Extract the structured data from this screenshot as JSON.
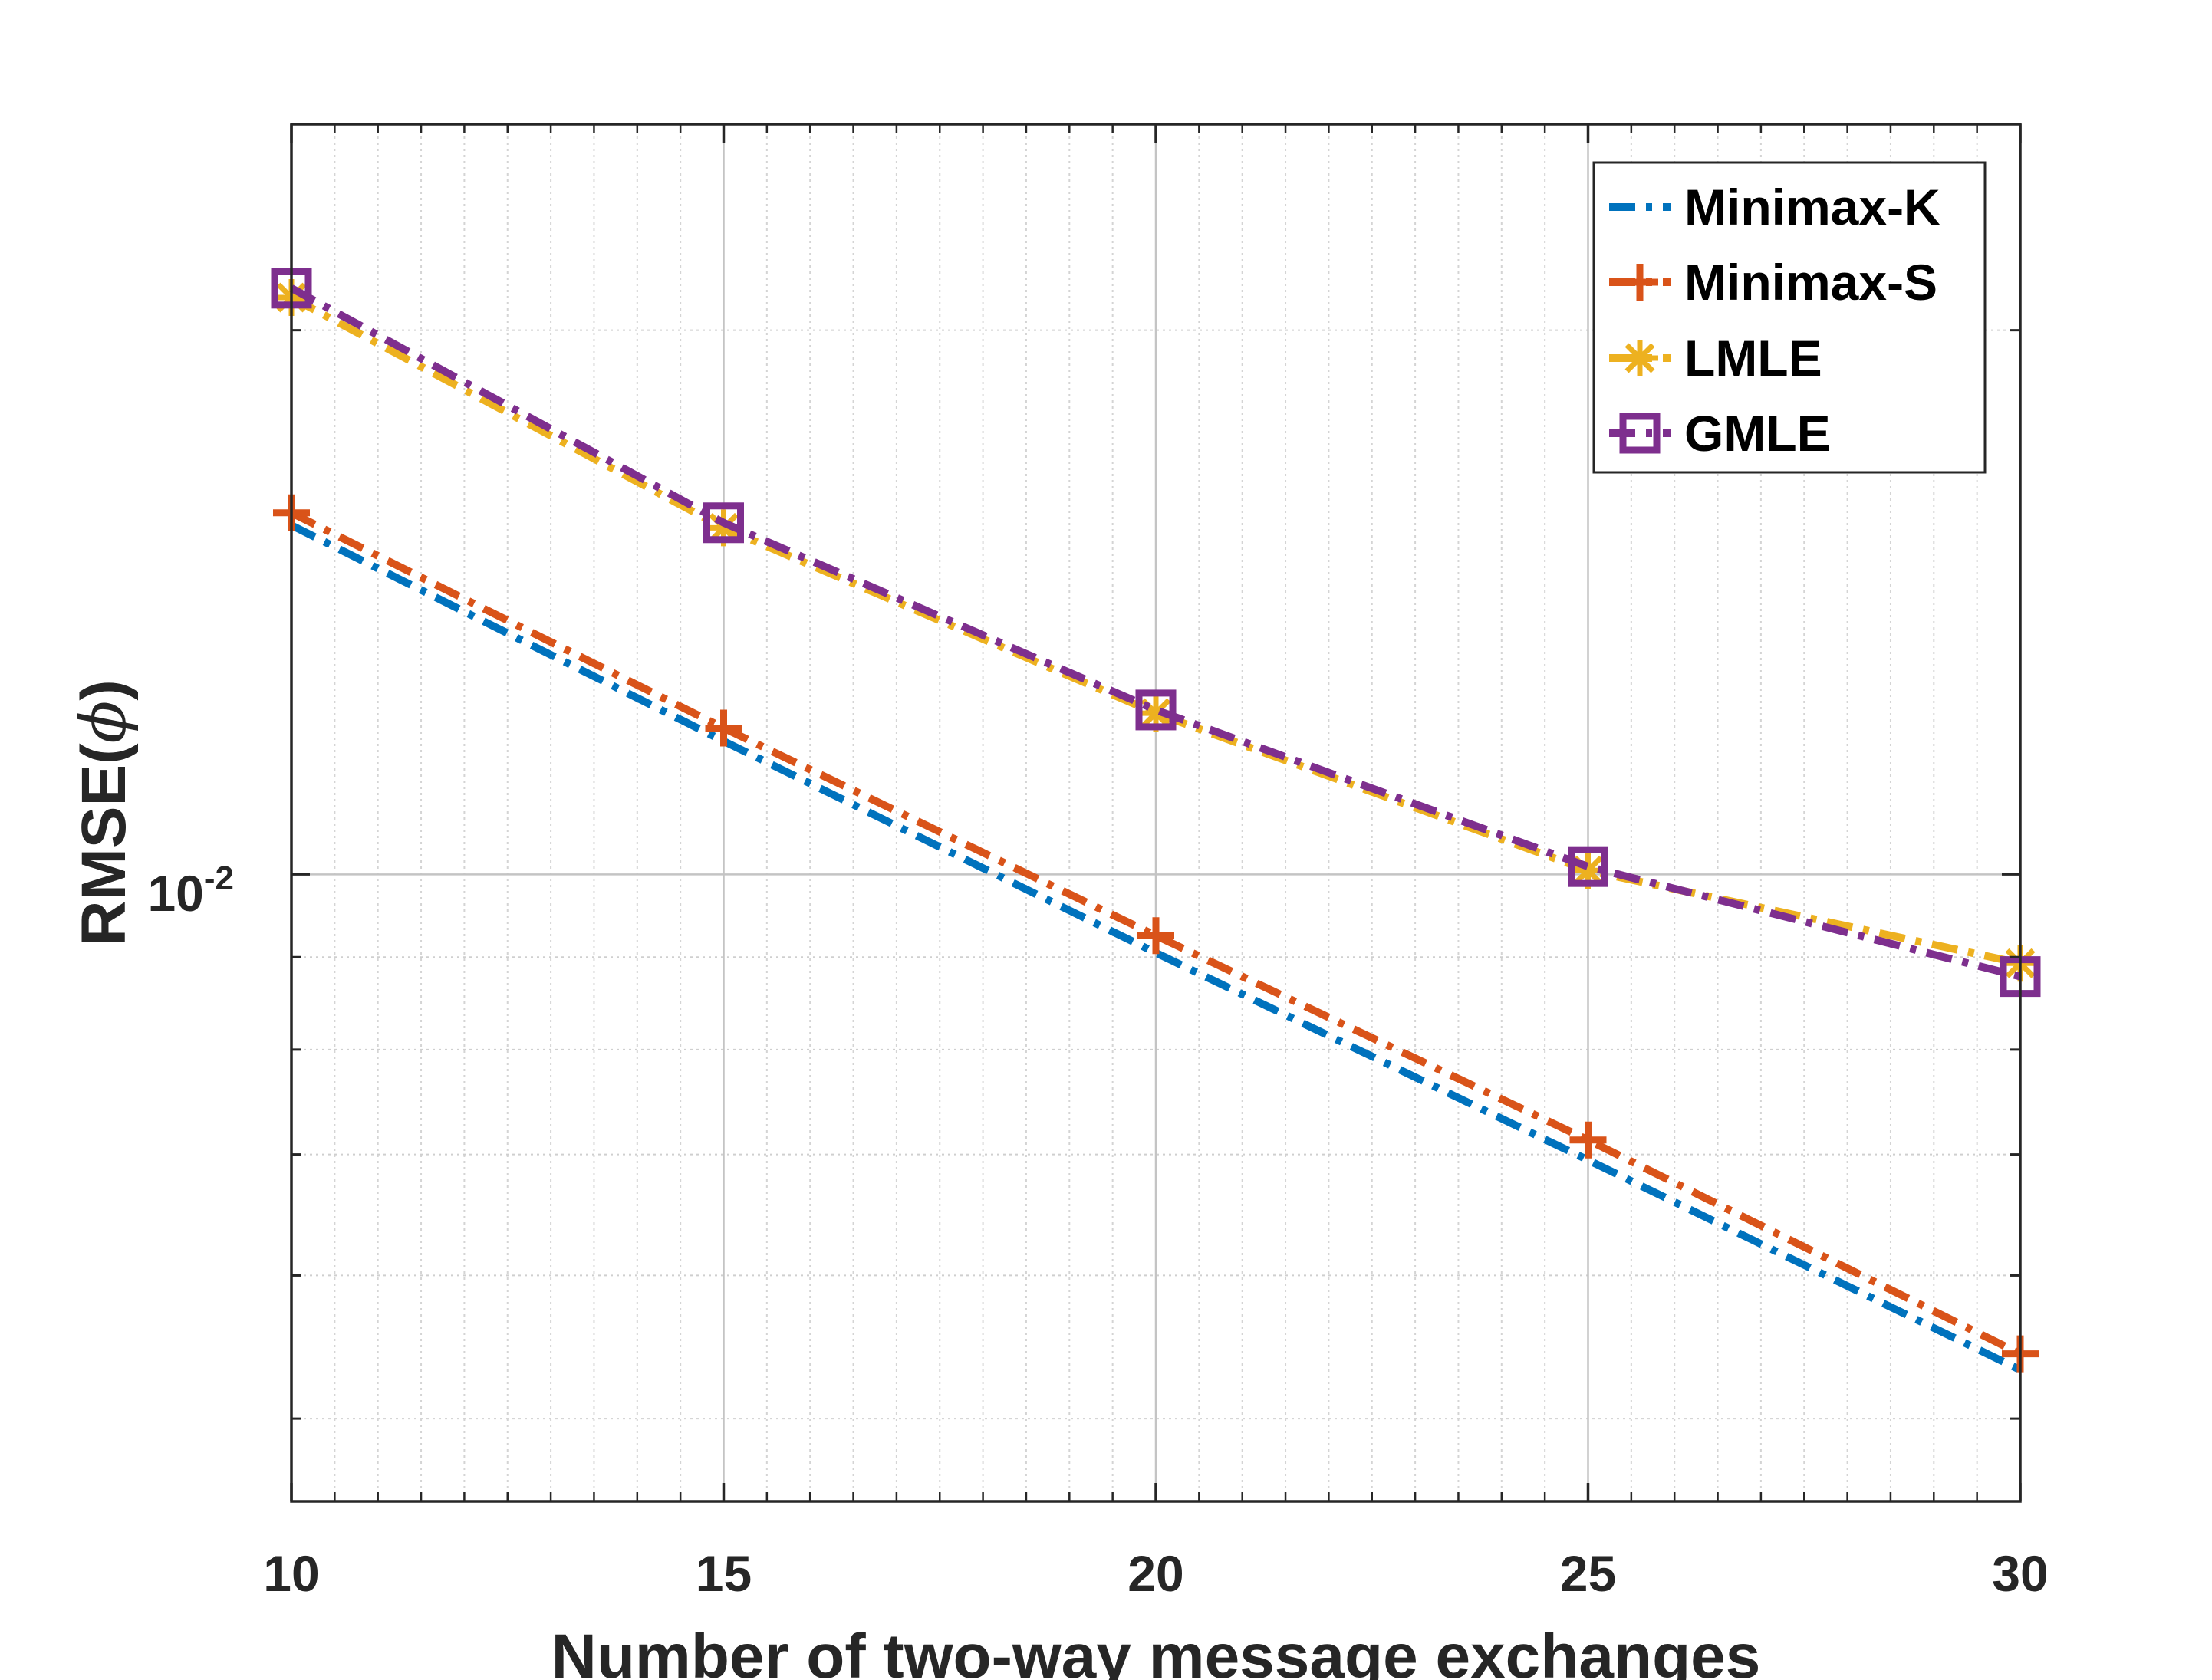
{
  "chart_data": {
    "type": "line",
    "xlabel": "Number of two-way message exchanges",
    "ylabel": "RMSE(",
    "ylabel_symbol": "ϕ",
    "ylabel_close": ")",
    "y_tick_label": "10",
    "y_tick_exp": "-2",
    "x": [
      10,
      15,
      20,
      25,
      30
    ],
    "x_ticks": [
      "10",
      "15",
      "20",
      "25",
      "30"
    ],
    "xlim": [
      10,
      30
    ],
    "ylim": [
      0.0045,
      0.026
    ],
    "yscale": "log",
    "grid": true,
    "legend_position": "top-right",
    "series": [
      {
        "name": "Minimax-K",
        "values": [
          0.0156,
          0.01185,
          0.00905,
          0.00695,
          0.00532
        ],
        "color": "#0072BD",
        "marker": "none",
        "line": "dash-dot"
      },
      {
        "name": "Minimax-S",
        "values": [
          0.01585,
          0.01205,
          0.00925,
          0.00713,
          0.00543
        ],
        "color": "#D95319",
        "marker": "plus",
        "line": "dash-dot"
      },
      {
        "name": "LMLE",
        "values": [
          0.02085,
          0.01555,
          0.01228,
          0.01005,
          0.00893
        ],
        "color": "#EDB120",
        "marker": "asterisk",
        "line": "dash-dot"
      },
      {
        "name": "GMLE",
        "values": [
          0.0211,
          0.01565,
          0.01233,
          0.0101,
          0.00878
        ],
        "color": "#7E2F8E",
        "marker": "square",
        "line": "dash-dot"
      }
    ]
  }
}
